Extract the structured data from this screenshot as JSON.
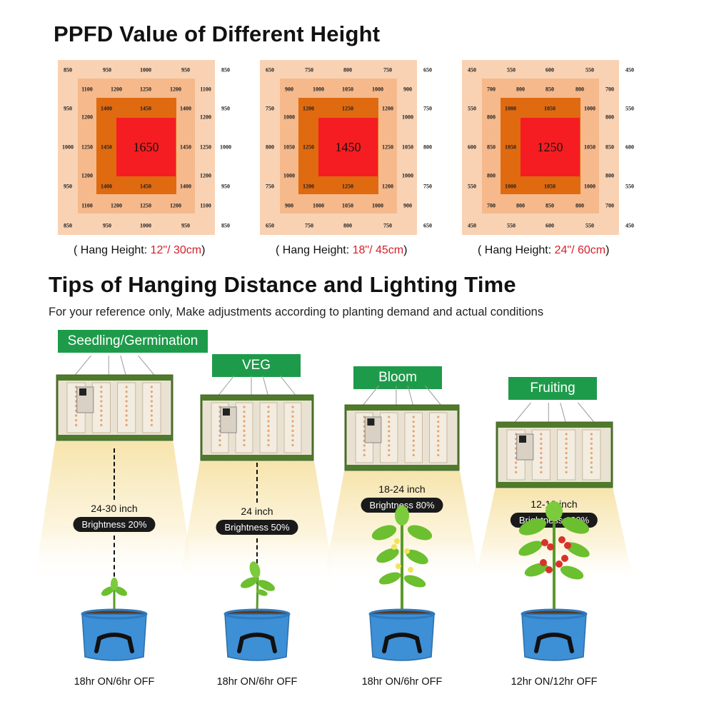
{
  "title1": "PPFD Value of Different Height",
  "ppfd": [
    {
      "center": "1650",
      "outer_top": [
        "850",
        "950",
        "1000",
        "950",
        "850"
      ],
      "outer_side": [
        "950",
        "1000",
        "950"
      ],
      "ring2_top": [
        "1100",
        "1200",
        "1250",
        "1200",
        "1100"
      ],
      "ring2_side": [
        "1200",
        "1250",
        "1200"
      ],
      "ring3_top": [
        "1400",
        "1450",
        "1400"
      ],
      "ring3_side": [
        "1450"
      ],
      "hang_prefix": "( Hang Height: ",
      "hang_value": "12\"/ 30cm",
      "hang_suffix": ")"
    },
    {
      "center": "1450",
      "outer_top": [
        "650",
        "750",
        "800",
        "750",
        "650"
      ],
      "outer_side": [
        "750",
        "800",
        "750"
      ],
      "ring2_top": [
        "900",
        "1000",
        "1050",
        "1000",
        "900"
      ],
      "ring2_side": [
        "1000",
        "1050",
        "1000"
      ],
      "ring3_top": [
        "1200",
        "1250",
        "1200"
      ],
      "ring3_side": [
        "1250"
      ],
      "hang_prefix": "( Hang Height: ",
      "hang_value": "18\"/ 45cm",
      "hang_suffix": ")"
    },
    {
      "center": "1250",
      "outer_top": [
        "450",
        "550",
        "600",
        "550",
        "450"
      ],
      "outer_side": [
        "550",
        "600",
        "550"
      ],
      "ring2_top": [
        "700",
        "800",
        "850",
        "800",
        "700"
      ],
      "ring2_side": [
        "800",
        "850",
        "800"
      ],
      "ring3_top": [
        "1000",
        "1050",
        "1000"
      ],
      "ring3_side": [
        "1050"
      ],
      "hang_prefix": "( Hang Height: ",
      "hang_value": "24\"/ 60cm",
      "hang_suffix": ")"
    }
  ],
  "title2": "Tips of Hanging Distance and Lighting Time",
  "subtitle": "For your reference only, Make adjustments according to planting demand and actual conditions",
  "stages": [
    {
      "label": "Seedling/Germination",
      "distance": "24-30 inch",
      "brightness": "Brightness 20%",
      "time": "18hr ON/6hr OFF"
    },
    {
      "label": "VEG",
      "distance": "24 inch",
      "brightness": "Brightness 50%",
      "time": "18hr ON/6hr OFF"
    },
    {
      "label": "Bloom",
      "distance": "18-24 inch",
      "brightness": "Brightness 80%",
      "time": "18hr ON/6hr OFF"
    },
    {
      "label": "Fruiting",
      "distance": "12-18 inch",
      "brightness": "Brightness 100%",
      "time": "12hr ON/12hr OFF"
    }
  ],
  "colors": {
    "accent_red": "#d61e2a",
    "label_green": "#1e9b4a",
    "pot_blue": "#3d8fd6",
    "ppfd_outer": "#f9d2b3",
    "ppfd_mid": "#f5b98c",
    "ppfd_inner": "#e06a10",
    "ppfd_center": "#f51d21"
  },
  "icons": [
    "grow-light-panel-icon",
    "plant-pot-icon",
    "seedling-icon",
    "tomato-plant-icon"
  ]
}
